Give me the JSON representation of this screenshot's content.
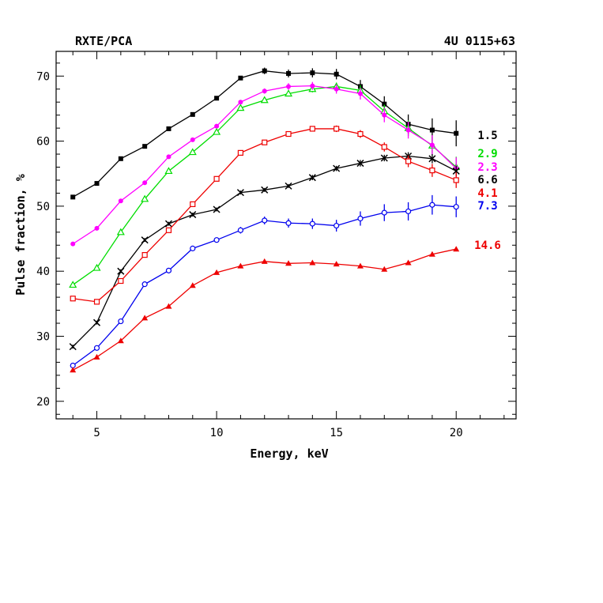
{
  "chart_data": {
    "type": "line",
    "title_left": "RXTE/PCA",
    "title_right": "4U 0115+63",
    "xlabel": "Energy, keV",
    "ylabel": "Pulse fraction, %",
    "xlim": [
      3.3,
      22.5
    ],
    "ylim": [
      17.3,
      73.8
    ],
    "xticks": [
      5,
      10,
      15,
      20
    ],
    "yticks": [
      20,
      30,
      40,
      50,
      60,
      70
    ],
    "x": [
      4,
      5,
      6,
      7,
      8,
      9,
      10,
      11,
      12,
      13,
      14,
      15,
      16,
      17,
      18,
      19,
      20
    ],
    "series": [
      {
        "label": "1.5",
        "color": "#000000",
        "marker": "filled-square",
        "values": [
          51.4,
          53.5,
          57.3,
          59.2,
          61.9,
          64.1,
          66.6,
          69.7,
          70.8,
          70.4,
          70.5,
          70.3,
          68.4,
          65.7,
          62.6,
          61.7,
          61.2
        ],
        "errors": [
          0.3,
          0.3,
          0.3,
          0.3,
          0.3,
          0.3,
          0.3,
          0.3,
          0.5,
          0.6,
          0.7,
          0.8,
          1.0,
          1.2,
          1.5,
          1.8,
          2.0
        ]
      },
      {
        "label": "2.9",
        "color": "#00dd00",
        "marker": "open-triangle",
        "values": [
          37.9,
          40.5,
          46.0,
          51.1,
          55.4,
          58.3,
          61.4,
          65.1,
          66.3,
          67.3,
          68.0,
          68.4,
          67.8,
          64.6,
          62.0,
          59.3,
          56.0
        ],
        "errors": [
          0.3,
          0.3,
          0.3,
          0.3,
          0.3,
          0.3,
          0.3,
          0.3,
          0.4,
          0.4,
          0.5,
          0.6,
          0.8,
          1.0,
          1.2,
          1.4,
          1.6
        ]
      },
      {
        "label": "2.3",
        "color": "#ff00ff",
        "marker": "filled-circle",
        "values": [
          44.2,
          46.6,
          50.8,
          53.6,
          57.6,
          60.2,
          62.3,
          66.0,
          67.7,
          68.4,
          68.5,
          68.0,
          67.3,
          64.0,
          61.7,
          59.4,
          55.8
        ],
        "errors": [
          0.3,
          0.3,
          0.3,
          0.3,
          0.3,
          0.3,
          0.3,
          0.3,
          0.4,
          0.5,
          0.6,
          0.7,
          0.9,
          1.1,
          1.3,
          1.5,
          1.7
        ]
      },
      {
        "label": "6.6",
        "color": "#000000",
        "marker": "cross",
        "values": [
          28.4,
          32.1,
          40.0,
          44.8,
          47.3,
          48.7,
          49.5,
          52.1,
          52.5,
          53.1,
          54.4,
          55.8,
          56.6,
          57.4,
          57.7,
          57.3,
          55.4
        ],
        "errors": [
          0.3,
          0.3,
          0.3,
          0.3,
          0.3,
          0.3,
          0.3,
          0.3,
          0.3,
          0.3,
          0.4,
          0.4,
          0.5,
          0.5,
          0.6,
          0.7,
          0.8
        ]
      },
      {
        "label": "4.1",
        "color": "#ee0000",
        "marker": "open-square",
        "values": [
          35.8,
          35.3,
          38.5,
          42.5,
          46.3,
          50.3,
          54.2,
          58.2,
          59.8,
          61.1,
          61.9,
          61.9,
          61.1,
          59.1,
          56.9,
          55.5,
          54.0
        ],
        "errors": [
          0.3,
          0.3,
          0.3,
          0.3,
          0.3,
          0.3,
          0.3,
          0.3,
          0.3,
          0.4,
          0.4,
          0.5,
          0.6,
          0.7,
          0.9,
          1.0,
          1.2
        ]
      },
      {
        "label": "7.3",
        "color": "#0000ee",
        "marker": "open-circle",
        "values": [
          25.5,
          28.2,
          32.3,
          38.0,
          40.1,
          43.5,
          44.8,
          46.3,
          47.8,
          47.4,
          47.3,
          47.0,
          48.1,
          49.0,
          49.2,
          50.2,
          49.9
        ],
        "errors": [
          0.3,
          0.3,
          0.3,
          0.3,
          0.3,
          0.3,
          0.4,
          0.5,
          0.6,
          0.7,
          0.8,
          0.9,
          1.1,
          1.3,
          1.4,
          1.5,
          1.6
        ]
      },
      {
        "label": "14.6",
        "color": "#ee0000",
        "marker": "filled-triangle",
        "values": [
          24.8,
          26.8,
          29.3,
          32.8,
          34.6,
          37.8,
          39.8,
          40.8,
          41.5,
          41.2,
          41.3,
          41.1,
          40.8,
          40.3,
          41.3,
          42.6,
          43.4
        ],
        "errors": [
          0.2,
          0.2,
          0.2,
          0.2,
          0.2,
          0.2,
          0.2,
          0.2,
          0.2,
          0.2,
          0.2,
          0.2,
          0.2,
          0.3,
          0.3,
          0.3,
          0.3
        ]
      }
    ]
  }
}
